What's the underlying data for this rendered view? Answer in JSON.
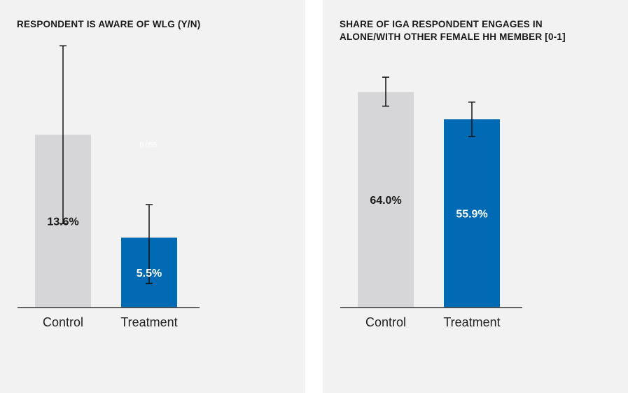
{
  "colors": {
    "panel_bg": "#f2f2f2",
    "control": "#d6d6d8",
    "treatment": "#006ab4",
    "axis": "#333333"
  },
  "chart_data": [
    {
      "type": "bar",
      "title": "RESPONDENT IS AWARE OF WLG (Y/N)",
      "categories": [
        "Control",
        "Treatment"
      ],
      "values": [
        13.6,
        5.5
      ],
      "value_labels": [
        "13.6%",
        "5.5%"
      ],
      "error_bars": [
        [
          6.6,
          20.6
        ],
        [
          1.9,
          8.1
        ]
      ],
      "annotation": "0.055",
      "ylim": [
        0,
        22
      ],
      "grid": false,
      "legend": "none"
    },
    {
      "type": "bar",
      "title": "SHARE OF IGA RESPONDENT ENGAGES IN\nALONE/WITH OTHER FEMALE HH MEMBER [0-1]",
      "categories": [
        "Control",
        "Treatment"
      ],
      "values": [
        64.0,
        55.9
      ],
      "value_labels": [
        "64.0%",
        "55.9%"
      ],
      "error_bars": [
        [
          59.8,
          68.4
        ],
        [
          50.8,
          61.0
        ]
      ],
      "ylim": [
        0,
        83
      ],
      "grid": false,
      "legend": "none"
    }
  ]
}
